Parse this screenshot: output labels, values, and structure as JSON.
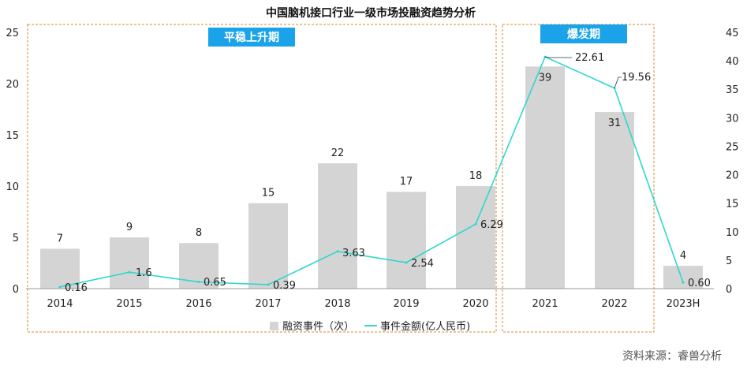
{
  "chart_data": {
    "type": "bar+line",
    "title": "中国脑机接口行业一级市场投融资趋势分析",
    "categories": [
      "2014",
      "2015",
      "2016",
      "2017",
      "2018",
      "2019",
      "2020",
      "2021",
      "2022",
      "2023H"
    ],
    "series": [
      {
        "name": "融资事件（次）",
        "type": "bar",
        "axis": "right",
        "values": [
          7,
          9,
          8,
          15,
          22,
          17,
          18,
          39,
          31,
          4
        ],
        "labels": [
          "7",
          "9",
          "8",
          "15",
          "22",
          "17",
          "18",
          "39",
          "31",
          "4"
        ]
      },
      {
        "name": "事件金额(亿人民币)",
        "type": "line",
        "axis": "left",
        "values": [
          0.16,
          1.6,
          0.65,
          0.39,
          3.63,
          2.54,
          6.29,
          22.61,
          19.56,
          0.6
        ],
        "labels": [
          "0.16",
          "1.6",
          "0.65",
          "0.39",
          "3.63",
          "2.54",
          "6.29",
          "22.61",
          "19.56",
          "0.60"
        ]
      }
    ],
    "left_axis": {
      "ticks": [
        "0",
        "5",
        "10",
        "15",
        "20",
        "25"
      ],
      "ylim": [
        0,
        25
      ]
    },
    "right_axis": {
      "ticks": [
        "0",
        "5",
        "10",
        "15",
        "20",
        "25",
        "30",
        "35",
        "40",
        "45"
      ],
      "ylim": [
        0,
        45
      ]
    },
    "annotations": {
      "phase1": "平稳上升期",
      "phase2": "爆发期"
    },
    "legend": {
      "bar": "融资事件（次）",
      "line": "事件金额(亿人民币)",
      "position": "bottom"
    },
    "source": "资料来源：睿兽分析",
    "colors": {
      "bar": "#d4d4d4",
      "line": "#2ed8cc",
      "badge": "#1aa3e8",
      "dashed_box": "#d98a2b"
    }
  }
}
